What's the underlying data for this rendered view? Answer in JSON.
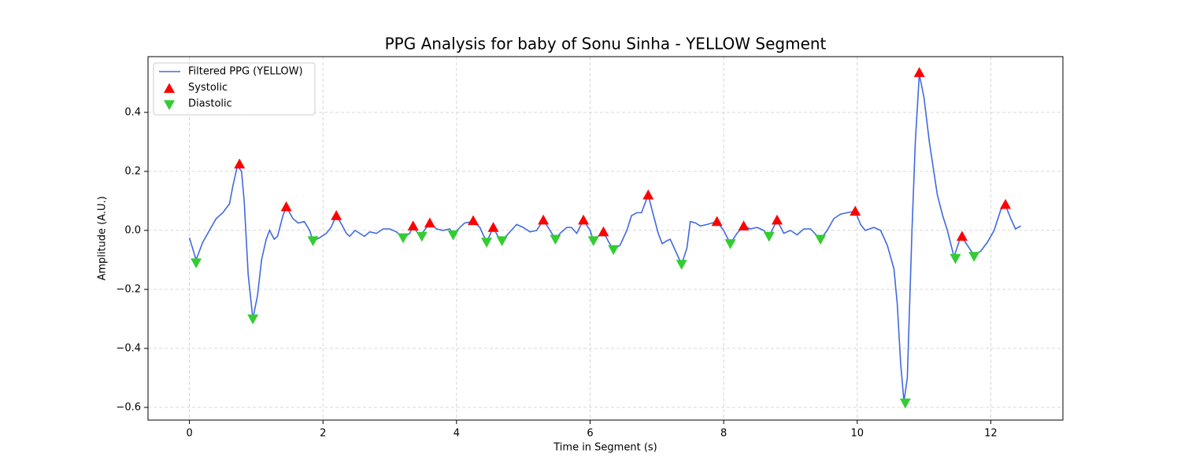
{
  "chart_data": {
    "type": "line",
    "title": "PPG Analysis for baby of Sonu Sinha - YELLOW Segment",
    "xlabel": "Time in Segment (s)",
    "ylabel": "Amplitude (A.U.)",
    "xlim": [
      -0.62,
      13.08
    ],
    "ylim": [
      -0.643,
      0.589
    ],
    "xticks": [
      0,
      2,
      4,
      6,
      8,
      10,
      12
    ],
    "yticks": [
      {
        "value": -0.6,
        "label": "−0.6"
      },
      {
        "value": -0.4,
        "label": "−0.4"
      },
      {
        "value": -0.2,
        "label": "−0.2"
      },
      {
        "value": 0,
        "label": "0.0"
      },
      0.2,
      0.4
    ],
    "grid": true,
    "legend": "upper left",
    "series": [
      {
        "name": "Filtered PPG (YELLOW)",
        "type": "line",
        "color": "#4169e1",
        "x": [
          0,
          0.1,
          0.2,
          0.3,
          0.4,
          0.5,
          0.6,
          0.65,
          0.72,
          0.78,
          0.82,
          0.88,
          0.95,
          1.02,
          1.08,
          1.15,
          1.2,
          1.27,
          1.32,
          1.4,
          1.45,
          1.55,
          1.63,
          1.72,
          1.8,
          1.85,
          1.95,
          2.05,
          2.12,
          2.2,
          2.28,
          2.35,
          2.4,
          2.48,
          2.55,
          2.62,
          2.7,
          2.8,
          2.9,
          3.0,
          3.1,
          3.2,
          3.3,
          3.35,
          3.45,
          3.55,
          3.6,
          3.7,
          3.8,
          3.9,
          3.95,
          4.05,
          4.12,
          4.25,
          4.35,
          4.45,
          4.55,
          4.62,
          4.68,
          4.78,
          4.9,
          5.0,
          5.1,
          5.2,
          5.3,
          5.4,
          5.48,
          5.55,
          5.65,
          5.72,
          5.8,
          5.9,
          6.0,
          6.05,
          6.12,
          6.2,
          6.28,
          6.35,
          6.45,
          6.55,
          6.62,
          6.7,
          6.77,
          6.87,
          6.95,
          7.02,
          7.08,
          7.15,
          7.2,
          7.28,
          7.37,
          7.45,
          7.5,
          7.58,
          7.65,
          7.75,
          7.9,
          8.0,
          8.1,
          8.2,
          8.3,
          8.4,
          8.5,
          8.6,
          8.68,
          8.8,
          8.9,
          9.0,
          9.1,
          9.2,
          9.3,
          9.45,
          9.55,
          9.65,
          9.75,
          9.85,
          9.97,
          10.05,
          10.12,
          10.25,
          10.35,
          10.45,
          10.55,
          10.6,
          10.65,
          10.7,
          10.75,
          10.82,
          10.87,
          10.93,
          11.0,
          11.08,
          11.2,
          11.28,
          11.35,
          11.45,
          11.55,
          11.62,
          11.75,
          11.85,
          11.95,
          12.05,
          12.15,
          12.22,
          12.3,
          12.37,
          12.45
        ],
        "values": [
          -0.025,
          -0.1,
          -0.04,
          0.0,
          0.04,
          0.06,
          0.09,
          0.15,
          0.22,
          0.2,
          0.1,
          -0.15,
          -0.3,
          -0.22,
          -0.1,
          -0.03,
          0.0,
          -0.03,
          -0.02,
          0.05,
          0.08,
          0.04,
          0.025,
          0.03,
          0.0,
          -0.035,
          -0.025,
          -0.01,
          0.01,
          0.05,
          0.02,
          -0.01,
          -0.02,
          0.0,
          -0.01,
          -0.02,
          -0.005,
          -0.01,
          0.005,
          0.005,
          -0.005,
          -0.025,
          -0.01,
          0.015,
          -0.02,
          0.01,
          0.025,
          0.005,
          0.0,
          0.005,
          -0.015,
          0.01,
          0.025,
          0.03,
          0.01,
          -0.04,
          0.01,
          -0.02,
          -0.035,
          -0.01,
          0.02,
          0.01,
          -0.005,
          0.0,
          0.035,
          0.0,
          -0.03,
          -0.01,
          0.01,
          0.01,
          -0.01,
          0.035,
          0.0,
          -0.035,
          -0.02,
          -0.005,
          -0.04,
          -0.065,
          -0.05,
          0.0,
          0.05,
          0.06,
          0.06,
          0.12,
          0.05,
          -0.01,
          -0.045,
          -0.035,
          -0.03,
          -0.07,
          -0.115,
          -0.06,
          0.03,
          0.025,
          0.015,
          0.02,
          0.03,
          0.0,
          -0.045,
          -0.01,
          0.015,
          0.005,
          0.01,
          0.0,
          -0.02,
          0.035,
          -0.01,
          0.0,
          -0.015,
          0.005,
          0.005,
          -0.03,
          0.0,
          0.04,
          0.055,
          0.06,
          0.065,
          0.02,
          0.0,
          0.01,
          0.0,
          -0.05,
          -0.13,
          -0.25,
          -0.45,
          -0.58,
          -0.5,
          0.0,
          0.3,
          0.53,
          0.45,
          0.3,
          0.12,
          0.05,
          0.0,
          -0.09,
          -0.02,
          -0.04,
          -0.085,
          -0.07,
          -0.04,
          0.0,
          0.07,
          0.085,
          0.04,
          0.005,
          0.015
        ]
      },
      {
        "name": "Systolic",
        "type": "scatter",
        "marker": "triangle-up",
        "color": "#ff0000",
        "x": [
          0.75,
          1.45,
          2.2,
          3.35,
          3.6,
          4.25,
          4.55,
          5.3,
          5.9,
          6.2,
          6.87,
          7.9,
          8.3,
          8.8,
          9.97,
          10.93,
          11.57,
          12.22
        ],
        "values": [
          0.225,
          0.08,
          0.05,
          0.015,
          0.025,
          0.033,
          0.01,
          0.035,
          0.035,
          -0.005,
          0.12,
          0.03,
          0.015,
          0.035,
          0.065,
          0.535,
          -0.02,
          0.088
        ]
      },
      {
        "name": "Diastolic",
        "type": "scatter",
        "marker": "triangle-down",
        "color": "#32cd32",
        "x": [
          0.1,
          0.95,
          1.85,
          3.2,
          3.48,
          3.95,
          4.45,
          4.68,
          5.48,
          6.05,
          6.35,
          7.37,
          8.1,
          8.68,
          9.45,
          10.72,
          11.47,
          11.75
        ],
        "values": [
          -0.11,
          -0.3,
          -0.035,
          -0.025,
          -0.02,
          -0.015,
          -0.04,
          -0.035,
          -0.03,
          -0.035,
          -0.065,
          -0.115,
          -0.045,
          -0.02,
          -0.03,
          -0.585,
          -0.095,
          -0.088
        ]
      }
    ]
  }
}
